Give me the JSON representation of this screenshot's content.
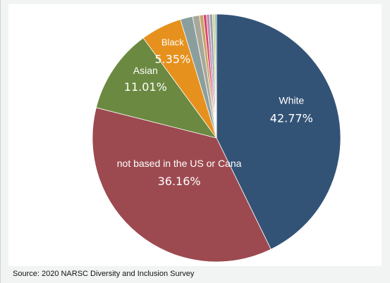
{
  "chart_data": {
    "type": "pie",
    "title": "",
    "slices": [
      {
        "label": "White",
        "value": 42.77,
        "value_text": "42.77%",
        "color": "#335376"
      },
      {
        "label": "not based in the US or Cana",
        "value": 36.16,
        "value_text": "36.16%",
        "color": "#9c4a50"
      },
      {
        "label": "Asian",
        "value": 11.01,
        "value_text": "11.01%",
        "color": "#6b8941"
      },
      {
        "label": "Black",
        "value": 5.35,
        "value_text": "5.35%",
        "color": "#e6911d"
      },
      {
        "label": "",
        "value": 1.6,
        "value_text": "",
        "color": "#8a9f9d"
      },
      {
        "label": "",
        "value": 0.9,
        "value_text": "",
        "color": "#a8a89a"
      },
      {
        "label": "",
        "value": 0.5,
        "value_text": "",
        "color": "#c7a46a"
      },
      {
        "label": "",
        "value": 0.4,
        "value_text": "",
        "color": "#d9446a"
      },
      {
        "label": "",
        "value": 0.4,
        "value_text": "",
        "color": "#b98fb4"
      },
      {
        "label": "",
        "value": 0.4,
        "value_text": "",
        "color": "#9aa3ab"
      },
      {
        "label": "",
        "value": 0.3,
        "value_text": "",
        "color": "#d2d07c"
      },
      {
        "label": "",
        "value": 0.2,
        "value_text": "",
        "color": "#6fa7c7"
      }
    ],
    "start_angle_deg": 0,
    "direction": "clockwise",
    "legend": "none",
    "label_color": "#ffffff"
  },
  "footer": {
    "source": "Source: 2020 NARSC Diversity and Inclusion Survey"
  }
}
